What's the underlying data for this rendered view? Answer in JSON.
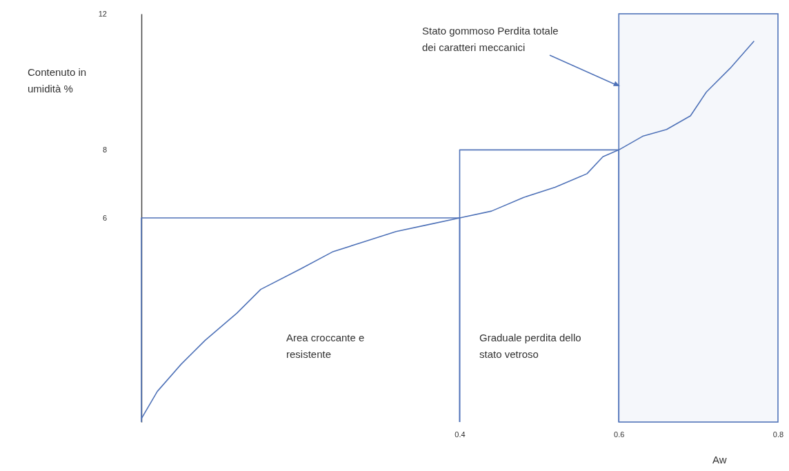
{
  "chart_data": {
    "type": "line",
    "xlabel": "Aw",
    "ylabel": "Contenuto in umidità %",
    "xlim": [
      0,
      0.8
    ],
    "ylim": [
      0,
      12
    ],
    "xticks": [
      0.4,
      0.6,
      0.8
    ],
    "yticks": [
      6,
      8,
      12
    ],
    "grid": false,
    "marker": "none",
    "line_style": "solid",
    "series": [
      {
        "color": "#4f72b8",
        "x": [
          0.0,
          0.02,
          0.05,
          0.08,
          0.12,
          0.15,
          0.2,
          0.24,
          0.28,
          0.32,
          0.36,
          0.4,
          0.44,
          0.48,
          0.52,
          0.56,
          0.58,
          0.6,
          0.63,
          0.66,
          0.69,
          0.71,
          0.74,
          0.77
        ],
        "values": [
          0.1,
          0.9,
          1.7,
          2.4,
          3.2,
          3.9,
          4.5,
          5.0,
          5.3,
          5.6,
          5.8,
          6.0,
          6.2,
          6.6,
          6.9,
          7.3,
          7.8,
          8.0,
          8.4,
          8.6,
          9.0,
          9.7,
          10.4,
          11.2
        ]
      },
      {
        "color": "#4f72b8",
        "x": [
          0,
          0,
          0.4,
          0.4
        ],
        "values": [
          0,
          6,
          6,
          0
        ]
      },
      {
        "color": "#4f72b8",
        "x": [
          0.4,
          0.4,
          0.6,
          0.6
        ],
        "values": [
          0,
          8,
          8,
          0
        ]
      }
    ],
    "bands": [
      {
        "axis": "x",
        "from": 0.6,
        "to": 0.8,
        "color": "#4f72b8"
      }
    ],
    "annotations": [
      "Area croccante e resistente",
      "Graduale perdita dello stato vetroso",
      "Stato gommoso Perdita totale dei caratteri meccanici"
    ]
  }
}
